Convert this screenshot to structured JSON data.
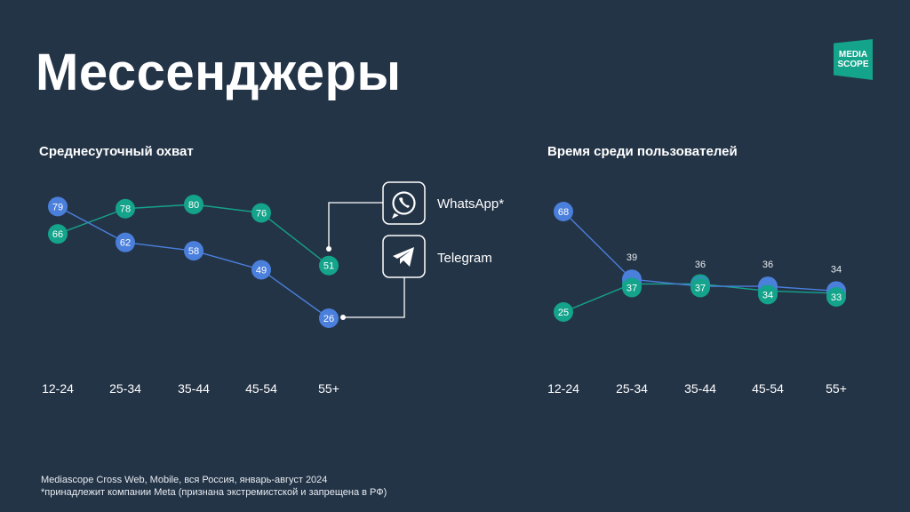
{
  "page": {
    "title": "Мессенджеры"
  },
  "logo": {
    "line1": "MEDIA",
    "line2": "SCOPE"
  },
  "colors": {
    "whatsapp": "#14a38b",
    "telegram": "#4a7fdc",
    "background": "#243447"
  },
  "legend": {
    "whatsapp": {
      "label": "WhatsApp*",
      "icon": "whatsapp-icon"
    },
    "telegram": {
      "label": "Telegram",
      "icon": "telegram-icon"
    }
  },
  "footnote": {
    "line1": "Mediascope Cross Web, Mobile, вся Россия, январь-август 2024",
    "line2": "*принадлежит компании Meta (признана экстремистской и запрещена в РФ)"
  },
  "chart_data": [
    {
      "type": "line",
      "title": "Среднесуточный охват",
      "categories": [
        "12-24",
        "25-34",
        "35-44",
        "45-54",
        "55+"
      ],
      "series": [
        {
          "name": "WhatsApp*",
          "values": [
            66,
            78,
            80,
            76,
            51
          ]
        },
        {
          "name": "Telegram",
          "values": [
            79,
            62,
            58,
            49,
            26
          ]
        }
      ]
    },
    {
      "type": "line",
      "title": "Время среди пользователей",
      "categories": [
        "12-24",
        "25-34",
        "35-44",
        "45-54",
        "55+"
      ],
      "series": [
        {
          "name": "WhatsApp*",
          "values": [
            25,
            37,
            37,
            34,
            33
          ]
        },
        {
          "name": "Telegram",
          "values": [
            68,
            39,
            36,
            36,
            34
          ]
        }
      ]
    }
  ]
}
